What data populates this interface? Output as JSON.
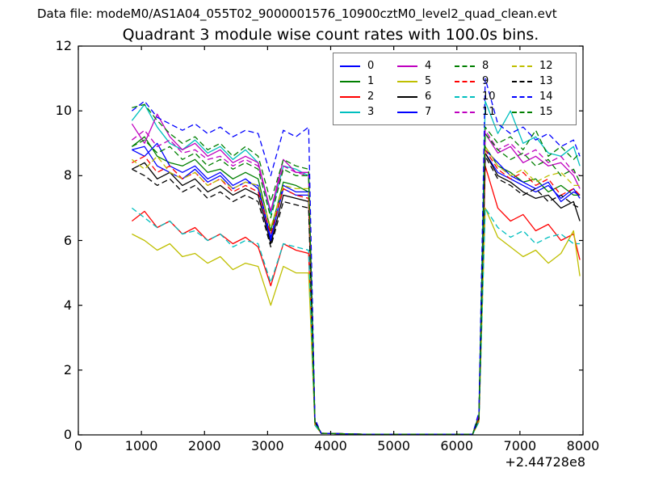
{
  "figure": {
    "data_file_text": "Data file: modeM0/AS1A04_055T02_9000001576_10900cztM0_level2_quad_clean.evt"
  },
  "chart_data": {
    "type": "line",
    "title": "Quadrant 3 module wise count rates with 100.0s bins.",
    "xlabel": "",
    "ylabel": "",
    "grid": false,
    "legend_position": "upper right",
    "legend_columns": 4,
    "x_axis": {
      "lim": [
        0,
        8000
      ],
      "ticks": [
        0,
        1000,
        2000,
        3000,
        4000,
        5000,
        6000,
        7000,
        8000
      ],
      "offset_text": "+2.44728e8"
    },
    "y_axis": {
      "lim": [
        0,
        12
      ],
      "ticks": [
        0,
        2,
        4,
        6,
        8,
        10,
        12
      ]
    },
    "x": [
      850,
      1050,
      1250,
      1450,
      1650,
      1850,
      2050,
      2250,
      2450,
      2650,
      2850,
      3050,
      3250,
      3450,
      3650,
      3750,
      3850,
      4500,
      5500,
      6250,
      6350,
      6450,
      6650,
      6850,
      7050,
      7250,
      7450,
      7650,
      7850,
      7950
    ],
    "series": [
      {
        "name": "0",
        "color": "#0000ff",
        "style": "solid",
        "values": [
          8.8,
          8.9,
          8.3,
          8.1,
          7.9,
          8.2,
          7.8,
          8.0,
          7.6,
          7.8,
          7.7,
          6.1,
          7.6,
          7.4,
          7.4,
          0.4,
          0.05,
          0.02,
          0.02,
          0.02,
          0.5,
          8.7,
          8.1,
          7.9,
          7.7,
          7.5,
          7.7,
          7.3,
          7.6,
          7.3
        ]
      },
      {
        "name": "1",
        "color": "#007f00",
        "style": "solid",
        "values": [
          8.9,
          9.2,
          8.6,
          8.4,
          8.3,
          8.5,
          8.1,
          8.2,
          7.9,
          8.1,
          7.9,
          6.3,
          7.8,
          7.7,
          7.5,
          0.4,
          0.05,
          0.02,
          0.02,
          0.02,
          0.6,
          8.9,
          8.3,
          8.1,
          7.8,
          7.9,
          7.5,
          7.7,
          7.4,
          7.4
        ]
      },
      {
        "name": "2",
        "color": "#ff0000",
        "style": "solid",
        "values": [
          6.6,
          6.9,
          6.4,
          6.6,
          6.2,
          6.4,
          6.0,
          6.2,
          5.9,
          6.1,
          5.8,
          4.6,
          5.9,
          5.7,
          5.6,
          0.3,
          0.05,
          0.02,
          0.02,
          0.02,
          0.5,
          8.3,
          7.0,
          6.6,
          6.8,
          6.3,
          6.5,
          6.0,
          6.2,
          5.4
        ]
      },
      {
        "name": "3",
        "color": "#00bfbf",
        "style": "solid",
        "values": [
          9.7,
          10.2,
          9.5,
          9.0,
          8.8,
          9.1,
          8.7,
          8.9,
          8.5,
          8.8,
          8.4,
          6.8,
          8.3,
          8.2,
          8.0,
          0.4,
          0.05,
          0.02,
          0.02,
          0.02,
          0.6,
          10.3,
          9.3,
          10.0,
          9.0,
          9.2,
          8.7,
          8.6,
          8.9,
          8.3
        ]
      },
      {
        "name": "4",
        "color": "#bf00bf",
        "style": "solid",
        "values": [
          9.6,
          9.0,
          9.9,
          9.2,
          8.8,
          9.0,
          8.6,
          8.8,
          8.4,
          8.6,
          8.4,
          6.9,
          8.5,
          8.1,
          8.1,
          0.4,
          0.05,
          0.02,
          0.02,
          0.02,
          0.6,
          9.3,
          8.7,
          8.9,
          8.4,
          8.6,
          8.3,
          8.4,
          8.0,
          7.6
        ]
      },
      {
        "name": "5",
        "color": "#bfbf00",
        "style": "solid",
        "values": [
          6.2,
          6.0,
          5.7,
          5.9,
          5.5,
          5.6,
          5.3,
          5.5,
          5.1,
          5.3,
          5.2,
          4.0,
          5.2,
          5.0,
          5.0,
          0.3,
          0.05,
          0.02,
          0.02,
          0.02,
          0.4,
          7.0,
          6.1,
          5.8,
          5.5,
          5.7,
          5.3,
          5.6,
          6.3,
          4.9
        ]
      },
      {
        "name": "6",
        "color": "#000000",
        "style": "solid",
        "values": [
          8.2,
          8.4,
          7.9,
          8.1,
          7.7,
          7.9,
          7.5,
          7.7,
          7.4,
          7.6,
          7.4,
          5.9,
          7.4,
          7.3,
          7.2,
          0.4,
          0.05,
          0.02,
          0.02,
          0.02,
          0.5,
          8.7,
          8.0,
          7.8,
          7.5,
          7.3,
          7.4,
          7.0,
          7.2,
          6.6
        ]
      },
      {
        "name": "7",
        "color": "#0000ff",
        "style": "solid",
        "values": [
          8.8,
          8.6,
          9.0,
          8.3,
          8.1,
          8.3,
          7.9,
          8.1,
          7.7,
          7.9,
          7.6,
          6.0,
          7.7,
          7.5,
          7.5,
          0.4,
          0.05,
          0.02,
          0.02,
          0.02,
          0.5,
          8.8,
          8.4,
          8.0,
          7.8,
          7.6,
          7.8,
          7.2,
          7.5,
          7.4
        ]
      },
      {
        "name": "8",
        "color": "#007f00",
        "style": "dashed",
        "values": [
          10.1,
          10.2,
          9.7,
          9.3,
          9.0,
          9.2,
          8.8,
          9.0,
          8.6,
          8.9,
          8.6,
          7.2,
          8.5,
          8.3,
          8.2,
          0.4,
          0.05,
          0.02,
          0.02,
          0.02,
          0.6,
          9.5,
          9.0,
          9.2,
          8.8,
          9.4,
          8.6,
          8.9,
          8.5,
          8.7
        ]
      },
      {
        "name": "9",
        "color": "#ff0000",
        "style": "dashed",
        "values": [
          8.4,
          8.6,
          8.1,
          8.3,
          7.9,
          8.1,
          7.7,
          7.9,
          7.5,
          7.7,
          7.5,
          6.2,
          7.6,
          7.4,
          7.3,
          0.4,
          0.05,
          0.02,
          0.02,
          0.02,
          0.5,
          8.8,
          8.2,
          7.9,
          8.1,
          7.7,
          7.9,
          7.4,
          7.6,
          7.4
        ]
      },
      {
        "name": "10",
        "color": "#00bfbf",
        "style": "dashed",
        "values": [
          7.0,
          6.7,
          6.4,
          6.6,
          6.2,
          6.3,
          6.0,
          6.2,
          5.8,
          6.0,
          5.9,
          4.7,
          5.9,
          5.8,
          5.7,
          0.3,
          0.05,
          0.02,
          0.02,
          0.02,
          0.4,
          7.0,
          6.4,
          6.1,
          6.3,
          5.9,
          6.1,
          6.2,
          5.9,
          5.9
        ]
      },
      {
        "name": "11",
        "color": "#bf00bf",
        "style": "dashed",
        "values": [
          9.1,
          9.4,
          8.9,
          9.1,
          8.7,
          8.8,
          8.5,
          8.6,
          8.3,
          8.5,
          8.3,
          6.9,
          8.3,
          8.1,
          8.0,
          0.4,
          0.05,
          0.02,
          0.02,
          0.02,
          0.6,
          9.4,
          8.8,
          9.0,
          8.6,
          8.8,
          8.4,
          8.6,
          8.1,
          8.0
        ]
      },
      {
        "name": "12",
        "color": "#bfbf00",
        "style": "dashed",
        "values": [
          8.5,
          8.2,
          8.6,
          8.1,
          7.9,
          8.1,
          7.7,
          7.9,
          7.6,
          7.8,
          7.7,
          6.4,
          7.7,
          7.6,
          7.6,
          0.4,
          0.05,
          0.02,
          0.02,
          0.02,
          0.5,
          8.9,
          8.3,
          8.0,
          8.2,
          7.8,
          8.0,
          8.1,
          7.7,
          7.7
        ]
      },
      {
        "name": "13",
        "color": "#000000",
        "style": "dashed",
        "values": [
          8.2,
          8.0,
          7.7,
          7.9,
          7.5,
          7.7,
          7.3,
          7.5,
          7.2,
          7.4,
          7.2,
          5.8,
          7.2,
          7.1,
          7.0,
          0.4,
          0.05,
          0.02,
          0.02,
          0.02,
          0.5,
          8.6,
          7.9,
          7.7,
          7.4,
          7.6,
          7.2,
          7.4,
          7.1,
          7.0
        ]
      },
      {
        "name": "14",
        "color": "#0000ff",
        "style": "dashed",
        "values": [
          10.0,
          10.3,
          9.8,
          9.6,
          9.4,
          9.6,
          9.3,
          9.5,
          9.2,
          9.4,
          9.3,
          8.0,
          9.4,
          9.2,
          9.5,
          0.5,
          0.05,
          0.02,
          0.02,
          0.02,
          0.7,
          11.0,
          9.6,
          9.3,
          9.5,
          9.1,
          9.3,
          8.9,
          9.1,
          8.6
        ]
      },
      {
        "name": "15",
        "color": "#007f00",
        "style": "dashed",
        "values": [
          8.9,
          9.1,
          8.7,
          8.9,
          8.5,
          8.7,
          8.3,
          8.5,
          8.2,
          8.4,
          8.2,
          6.7,
          8.2,
          8.0,
          8.0,
          0.4,
          0.05,
          0.02,
          0.02,
          0.02,
          0.6,
          9.3,
          8.8,
          8.5,
          8.7,
          8.3,
          8.5,
          8.0,
          8.2,
          7.8
        ]
      }
    ]
  }
}
